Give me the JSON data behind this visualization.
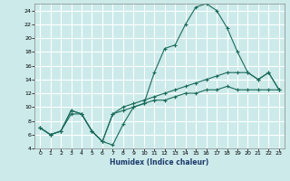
{
  "xlabel": "Humidex (Indice chaleur)",
  "background_color": "#cceaea",
  "grid_color": "#ffffff",
  "line_color": "#1a6b5a",
  "xlim": [
    -0.5,
    23.5
  ],
  "ylim": [
    4,
    25
  ],
  "xticks": [
    0,
    1,
    2,
    3,
    4,
    5,
    6,
    7,
    8,
    9,
    10,
    11,
    12,
    13,
    14,
    15,
    16,
    17,
    18,
    19,
    20,
    21,
    22,
    23
  ],
  "yticks": [
    4,
    6,
    8,
    10,
    12,
    14,
    16,
    18,
    20,
    22,
    24
  ],
  "series1_x": [
    0,
    1,
    2,
    3,
    4,
    5,
    6,
    7,
    8,
    9,
    10,
    11,
    12,
    13,
    14,
    15,
    16,
    17,
    18,
    19,
    20,
    21,
    22,
    23
  ],
  "series1_y": [
    7,
    6,
    6.5,
    9,
    9,
    6.5,
    5,
    4.5,
    7.5,
    10,
    10.5,
    15,
    18.5,
    19,
    22,
    24.5,
    25,
    24,
    21.5,
    18,
    15,
    14,
    15,
    12.5
  ],
  "series2_x": [
    0,
    1,
    2,
    3,
    4,
    5,
    6,
    7,
    8,
    9,
    10,
    11,
    12,
    13,
    14,
    15,
    16,
    17,
    18,
    19,
    20,
    21,
    22,
    23
  ],
  "series2_y": [
    7,
    6,
    6.5,
    9.5,
    9,
    6.5,
    5,
    9,
    10,
    10.5,
    11,
    11.5,
    12,
    12.5,
    13,
    13.5,
    14,
    14.5,
    15,
    15,
    15,
    14,
    15,
    12.5
  ],
  "series3_x": [
    0,
    1,
    2,
    3,
    4,
    5,
    6,
    7,
    8,
    9,
    10,
    11,
    12,
    13,
    14,
    15,
    16,
    17,
    18,
    19,
    20,
    21,
    22,
    23
  ],
  "series3_y": [
    7,
    6,
    6.5,
    9.5,
    9,
    6.5,
    5,
    9,
    9.5,
    10,
    10.5,
    11,
    11,
    11.5,
    12,
    12,
    12.5,
    12.5,
    13,
    12.5,
    12.5,
    12.5,
    12.5,
    12.5
  ]
}
